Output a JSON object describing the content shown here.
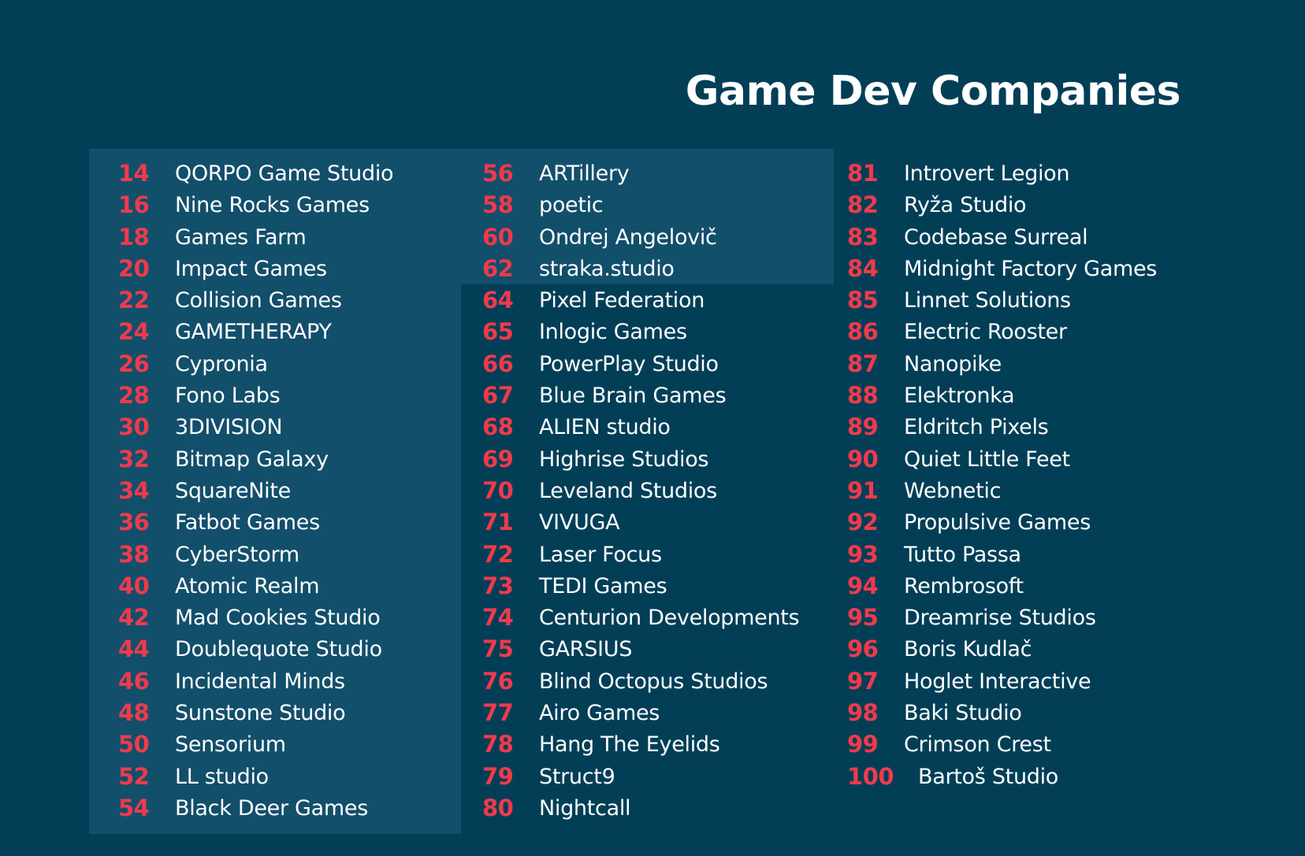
{
  "title": "Game Dev Companies",
  "colors": {
    "background": "#023f57",
    "highlight_panel": "#124f6b",
    "number": "#ef3a4c",
    "text": "#ffffff"
  },
  "columns": [
    {
      "entries": [
        {
          "rank": "14",
          "name": "QORPO Game Studio"
        },
        {
          "rank": "16",
          "name": "Nine Rocks Games"
        },
        {
          "rank": "18",
          "name": "Games Farm"
        },
        {
          "rank": "20",
          "name": "Impact Games"
        },
        {
          "rank": "22",
          "name": "Collision Games"
        },
        {
          "rank": "24",
          "name": "GAMETHERAPY"
        },
        {
          "rank": "26",
          "name": "Cypronia"
        },
        {
          "rank": "28",
          "name": "Fono Labs"
        },
        {
          "rank": "30",
          "name": "3DIVISION"
        },
        {
          "rank": "32",
          "name": "Bitmap Galaxy"
        },
        {
          "rank": "34",
          "name": "SquareNite"
        },
        {
          "rank": "36",
          "name": "Fatbot Games"
        },
        {
          "rank": "38",
          "name": "CyberStorm"
        },
        {
          "rank": "40",
          "name": "Atomic Realm"
        },
        {
          "rank": "42",
          "name": "Mad Cookies Studio"
        },
        {
          "rank": "44",
          "name": "Doublequote Studio"
        },
        {
          "rank": "46",
          "name": "Incidental Minds"
        },
        {
          "rank": "48",
          "name": "Sunstone Studio"
        },
        {
          "rank": "50",
          "name": "Sensorium"
        },
        {
          "rank": "52",
          "name": "LL studio"
        },
        {
          "rank": "54",
          "name": "Black Deer Games"
        }
      ]
    },
    {
      "entries": [
        {
          "rank": "56",
          "name": "ARTillery"
        },
        {
          "rank": "58",
          "name": "poetic"
        },
        {
          "rank": "60",
          "name": "Ondrej Angelovič"
        },
        {
          "rank": "62",
          "name": "straka.studio"
        },
        {
          "rank": "64",
          "name": "Pixel Federation"
        },
        {
          "rank": "65",
          "name": "Inlogic Games"
        },
        {
          "rank": "66",
          "name": "PowerPlay Studio"
        },
        {
          "rank": "67",
          "name": "Blue Brain Games"
        },
        {
          "rank": "68",
          "name": "ALIEN studio"
        },
        {
          "rank": "69",
          "name": "Highrise Studios"
        },
        {
          "rank": "70",
          "name": "Leveland Studios"
        },
        {
          "rank": "71",
          "name": "VIVUGA"
        },
        {
          "rank": "72",
          "name": "Laser Focus"
        },
        {
          "rank": "73",
          "name": "TEDI Games"
        },
        {
          "rank": "74",
          "name": "Centurion Developments"
        },
        {
          "rank": "75",
          "name": "GARSIUS"
        },
        {
          "rank": "76",
          "name": "Blind Octopus Studios"
        },
        {
          "rank": "77",
          "name": "Airo Games"
        },
        {
          "rank": "78",
          "name": "Hang The Eyelids"
        },
        {
          "rank": "79",
          "name": "Struct9"
        },
        {
          "rank": "80",
          "name": "Nightcall"
        }
      ]
    },
    {
      "entries": [
        {
          "rank": "81",
          "name": "Introvert Legion"
        },
        {
          "rank": "82",
          "name": "Ryža Studio"
        },
        {
          "rank": "83",
          "name": "Codebase Surreal"
        },
        {
          "rank": "84",
          "name": "Midnight Factory Games"
        },
        {
          "rank": "85",
          "name": "Linnet Solutions"
        },
        {
          "rank": "86",
          "name": "Electric Rooster"
        },
        {
          "rank": "87",
          "name": "Nanopike"
        },
        {
          "rank": "88",
          "name": "Elektronka"
        },
        {
          "rank": "89",
          "name": "Eldritch Pixels"
        },
        {
          "rank": "90",
          "name": "Quiet Little Feet"
        },
        {
          "rank": "91",
          "name": "Webnetic"
        },
        {
          "rank": "92",
          "name": "Propulsive Games"
        },
        {
          "rank": "93",
          "name": "Tutto Passa"
        },
        {
          "rank": "94",
          "name": "Rembrosoft"
        },
        {
          "rank": "95",
          "name": "Dreamrise Studios"
        },
        {
          "rank": "96",
          "name": "Boris Kudlač"
        },
        {
          "rank": "97",
          "name": "Hoglet Interactive"
        },
        {
          "rank": "98",
          "name": "Baki Studio"
        },
        {
          "rank": "99",
          "name": "Crimson Crest"
        },
        {
          "rank": "100",
          "name": "Bartoš Studio"
        }
      ]
    }
  ]
}
